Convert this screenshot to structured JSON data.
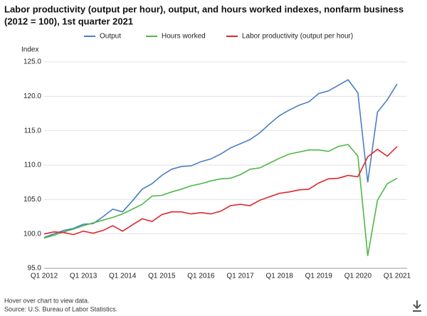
{
  "chart_data": {
    "type": "line",
    "title": "Labor productivity (output per hour), output, and hours worked indexes, nonfarm business",
    "subtitle": "(2012 = 100), 1st quarter 2021",
    "y_label": "Index",
    "categories": [
      "Q1 2012",
      null,
      null,
      null,
      "Q1 2013",
      null,
      null,
      null,
      "Q1 2014",
      null,
      null,
      null,
      "Q1 2015",
      null,
      null,
      null,
      "Q1 2016",
      null,
      null,
      null,
      "Q1 2017",
      null,
      null,
      null,
      "Q1 2018",
      null,
      null,
      null,
      "Q1 2019",
      null,
      null,
      null,
      "Q1 2020",
      null,
      null,
      null,
      "Q1 2021"
    ],
    "series": [
      {
        "name": "Output",
        "color": "#4a7fc1",
        "values": [
          99.5,
          100.0,
          100.5,
          100.8,
          101.4,
          101.5,
          102.5,
          103.6,
          103.2,
          104.8,
          106.5,
          107.3,
          108.5,
          109.4,
          109.8,
          109.9,
          110.5,
          110.9,
          111.6,
          112.5,
          113.1,
          113.7,
          114.7,
          116.0,
          117.2,
          118.0,
          118.7,
          119.2,
          120.4,
          120.8,
          121.6,
          122.4,
          120.5,
          107.5,
          117.7,
          119.5,
          121.8
        ]
      },
      {
        "name": "Hours worked",
        "color": "#4fb848",
        "values": [
          99.4,
          99.8,
          100.3,
          100.7,
          101.2,
          101.6,
          102.0,
          102.4,
          102.9,
          103.6,
          104.3,
          105.5,
          105.6,
          106.1,
          106.5,
          107.0,
          107.3,
          107.7,
          108.0,
          108.1,
          108.6,
          109.4,
          109.6,
          110.3,
          111.0,
          111.6,
          111.9,
          112.2,
          112.2,
          112.0,
          112.7,
          113.0,
          111.3,
          96.8,
          104.9,
          107.3,
          108.1
        ]
      },
      {
        "name": "Labor productivity (output per hour)",
        "color": "#e0262a",
        "values": [
          100.0,
          100.3,
          100.2,
          99.9,
          100.4,
          100.1,
          100.5,
          101.2,
          100.4,
          101.3,
          102.2,
          101.8,
          102.8,
          103.2,
          103.2,
          102.9,
          103.1,
          102.9,
          103.3,
          104.1,
          104.3,
          104.1,
          104.9,
          105.4,
          105.9,
          106.1,
          106.4,
          106.5,
          107.4,
          108.0,
          108.1,
          108.5,
          108.3,
          111.2,
          112.3,
          111.3,
          112.7
        ]
      }
    ],
    "ylim": [
      95,
      125
    ],
    "yticks": [
      {
        "value": 95,
        "label": "95.0"
      },
      {
        "value": 100,
        "label": "100.0"
      },
      {
        "value": 105,
        "label": "105.0"
      },
      {
        "value": 110,
        "label": "110.0"
      },
      {
        "value": 115,
        "label": "115.0"
      },
      {
        "value": 120,
        "label": "120.0"
      },
      {
        "value": 125,
        "label": "125.0"
      }
    ],
    "grid": true,
    "legend": "top",
    "notes": [
      "Hover over chart to view data.",
      "Source: U.S. Bureau of Labor Statistics."
    ]
  }
}
